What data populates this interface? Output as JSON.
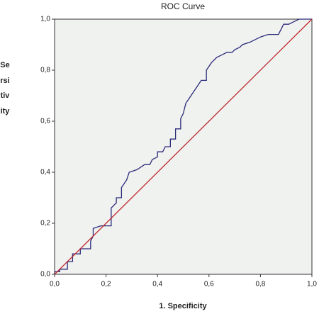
{
  "chart_data": {
    "type": "line",
    "title": "ROC Curve",
    "x_label": "1. Specificity",
    "y_label": "Sersitivity",
    "xlim": [
      0,
      1
    ],
    "ylim": [
      0,
      1
    ],
    "xticks": [
      {
        "value": 0,
        "label": "0,0"
      },
      {
        "value": 0.2,
        "label": "0,2"
      },
      {
        "value": 0.4,
        "label": "0,4"
      },
      {
        "value": 0.6,
        "label": "0,6"
      },
      {
        "value": 0.8,
        "label": "0,8"
      },
      {
        "value": 1,
        "label": "1,0"
      }
    ],
    "yticks": [
      {
        "value": 0,
        "label": "0,0"
      },
      {
        "value": 0.2,
        "label": "0,2"
      },
      {
        "value": 0.4,
        "label": "0,4"
      },
      {
        "value": 0.6,
        "label": "0,6"
      },
      {
        "value": 0.8,
        "label": "0,8"
      },
      {
        "value": 1,
        "label": "1,0"
      }
    ],
    "background": "#f0f2f0",
    "series": [
      {
        "color": "#2b2b7a",
        "x": [
          0,
          0,
          0.02,
          0.02,
          0.05,
          0.05,
          0.07,
          0.07,
          0.1,
          0.1,
          0.14,
          0.14,
          0.15,
          0.15,
          0.18,
          0.22,
          0.22,
          0.24,
          0.24,
          0.26,
          0.26,
          0.28,
          0.29,
          0.32,
          0.35,
          0.37,
          0.38,
          0.4,
          0.4,
          0.42,
          0.43,
          0.45,
          0.45,
          0.47,
          0.47,
          0.49,
          0.49,
          0.5,
          0.51,
          0.53,
          0.55,
          0.57,
          0.59,
          0.59,
          0.61,
          0.63,
          0.65,
          0.67,
          0.69,
          0.7,
          0.72,
          0.73,
          0.76,
          0.8,
          0.83,
          0.87,
          0.88,
          0.89,
          0.91,
          0.93,
          0.95,
          1
        ],
        "values": [
          0,
          0.01,
          0.01,
          0.02,
          0.02,
          0.05,
          0.05,
          0.08,
          0.08,
          0.1,
          0.1,
          0.13,
          0.15,
          0.18,
          0.19,
          0.19,
          0.26,
          0.28,
          0.3,
          0.3,
          0.34,
          0.37,
          0.4,
          0.41,
          0.43,
          0.43,
          0.45,
          0.46,
          0.48,
          0.48,
          0.5,
          0.5,
          0.53,
          0.53,
          0.57,
          0.57,
          0.61,
          0.63,
          0.67,
          0.7,
          0.73,
          0.76,
          0.76,
          0.8,
          0.83,
          0.85,
          0.86,
          0.87,
          0.87,
          0.88,
          0.89,
          0.9,
          0.91,
          0.93,
          0.94,
          0.94,
          0.96,
          0.98,
          0.98,
          0.99,
          1,
          1
        ]
      },
      {
        "color": "#c0282d",
        "x": [
          0,
          1
        ],
        "values": [
          0,
          1
        ]
      }
    ]
  }
}
